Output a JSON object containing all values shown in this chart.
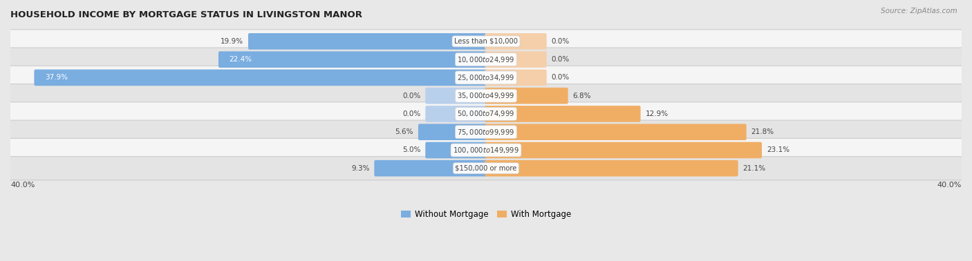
{
  "title": "HOUSEHOLD INCOME BY MORTGAGE STATUS IN LIVINGSTON MANOR",
  "source": "Source: ZipAtlas.com",
  "categories": [
    "Less than $10,000",
    "$10,000 to $24,999",
    "$25,000 to $34,999",
    "$35,000 to $49,999",
    "$50,000 to $74,999",
    "$75,000 to $99,999",
    "$100,000 to $149,999",
    "$150,000 or more"
  ],
  "without_mortgage": [
    19.9,
    22.4,
    37.9,
    0.0,
    0.0,
    5.6,
    5.0,
    9.3
  ],
  "with_mortgage": [
    0.0,
    0.0,
    0.0,
    6.8,
    12.9,
    21.8,
    23.1,
    21.1
  ],
  "without_mortgage_color": "#7aade0",
  "with_mortgage_color": "#f0ae65",
  "without_mortgage_light": "#b8d0ec",
  "with_mortgage_light": "#f5cfaa",
  "axis_limit": 40.0,
  "bg_color": "#e8e8e8",
  "row_bg_even": "#f5f5f5",
  "row_bg_odd": "#e4e4e4",
  "label_color": "#444444",
  "category_bg": "#ffffff",
  "title_color": "#222222",
  "legend_label_without": "Without Mortgage",
  "legend_label_with": "With Mortgage",
  "axis_label_left": "40.0%",
  "axis_label_right": "40.0%"
}
